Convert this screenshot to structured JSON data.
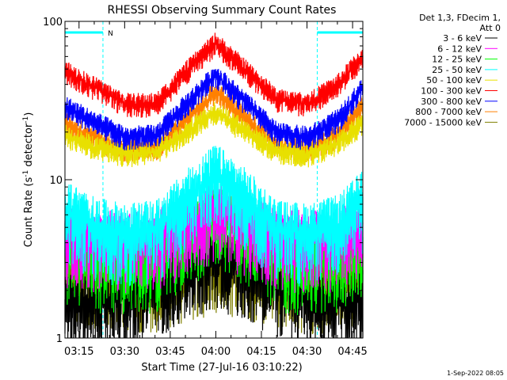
{
  "chart_data": {
    "type": "line",
    "title": "RHESSI Observing Summary Count Rates",
    "xlabel": "Start Time (27-Jul-16 03:10:22)",
    "ylabel_main": "Count Rate (s",
    "ylabel_sup1": "-1",
    "ylabel_mid": " detector",
    "ylabel_sup2": "-1",
    "ylabel_end": ")",
    "y_scale": "log",
    "ylim": [
      1,
      100
    ],
    "xlim_minutes": [
      0,
      98
    ],
    "y_ticks": [
      {
        "value": 1,
        "label": "1"
      },
      {
        "value": 10,
        "label": "10"
      },
      {
        "value": 100,
        "label": "100"
      }
    ],
    "x_ticks": [
      {
        "minute": 4.633,
        "label": "03:15"
      },
      {
        "minute": 19.633,
        "label": "03:30"
      },
      {
        "minute": 34.633,
        "label": "03:45"
      },
      {
        "minute": 49.633,
        "label": "04:00"
      },
      {
        "minute": 64.633,
        "label": "04:15"
      },
      {
        "minute": 79.633,
        "label": "04:30"
      },
      {
        "minute": 94.633,
        "label": "04:45"
      }
    ],
    "night_intervals": [
      [
        0,
        12.5
      ],
      [
        83,
        98
      ]
    ],
    "saa_marker": {
      "minute": 15,
      "label": "N"
    },
    "legend_header": [
      "Det 1,3, FDecim 1,",
      "Att 0"
    ],
    "legend_placement": "right",
    "series": [
      {
        "name": "3 - 6 keV",
        "color": "#000000",
        "x": [
          0,
          10,
          20,
          30,
          40,
          49.6,
          60,
          70,
          80,
          90,
          98
        ],
        "values": [
          1.6,
          1.7,
          1.9,
          2.2,
          2.8,
          3.3,
          2.8,
          2.2,
          1.8,
          1.6,
          1.8
        ]
      },
      {
        "name": "6 - 12 keV",
        "color": "#ff00ff",
        "x": [
          0,
          10,
          20,
          30,
          40,
          49.6,
          60,
          70,
          80,
          90,
          98
        ],
        "values": [
          4.6,
          4.3,
          4.1,
          4.3,
          5.4,
          6.3,
          5.2,
          4.3,
          4.1,
          4.3,
          4.8
        ]
      },
      {
        "name": "12 - 25 keV",
        "color": "#00ff00",
        "x": [
          0,
          10,
          20,
          30,
          40,
          49.6,
          60,
          70,
          80,
          90,
          98
        ],
        "values": [
          3.5,
          3.2,
          3.0,
          3.2,
          4.5,
          6.0,
          4.5,
          3.2,
          3.0,
          3.2,
          3.8
        ]
      },
      {
        "name": "25 - 50 keV",
        "color": "#00ffff",
        "x": [
          0,
          10,
          20,
          30,
          40,
          49.6,
          60,
          70,
          80,
          90,
          98
        ],
        "values": [
          6.5,
          5.0,
          4.6,
          4.8,
          7.5,
          11.0,
          7.5,
          4.8,
          4.6,
          5.2,
          7.5
        ]
      },
      {
        "name": "50 - 100 keV",
        "color": "#e8e000",
        "x": [
          0,
          10,
          20,
          30,
          40,
          49.6,
          60,
          70,
          80,
          90,
          98
        ],
        "values": [
          19,
          16,
          14.5,
          15,
          20,
          27,
          20,
          15,
          14.5,
          17,
          23
        ]
      },
      {
        "name": "100 - 300 keV",
        "color": "#ff0000",
        "x": [
          0,
          10,
          20,
          30,
          40,
          49.6,
          60,
          70,
          80,
          90,
          98
        ],
        "values": [
          48,
          38,
          30,
          30,
          48,
          73,
          48,
          32,
          30,
          40,
          60
        ]
      },
      {
        "name": "300 - 800 keV",
        "color": "#0000ff",
        "x": [
          0,
          10,
          20,
          30,
          40,
          49.6,
          60,
          70,
          80,
          90,
          98
        ],
        "values": [
          29,
          23,
          18.5,
          19,
          30,
          46,
          30,
          19.5,
          18.5,
          24,
          38
        ]
      },
      {
        "name": "800 - 7000 keV",
        "color": "#ff8000",
        "x": [
          0,
          10,
          20,
          30,
          40,
          49.6,
          60,
          70,
          80,
          90,
          98
        ],
        "values": [
          23,
          18,
          15.5,
          16,
          24,
          36,
          24,
          16,
          15.5,
          19,
          30
        ]
      },
      {
        "name": "7000 - 15000 keV",
        "color": "#808000",
        "x": [
          0,
          10,
          20,
          30,
          40,
          49.6,
          60,
          70,
          80,
          90,
          98
        ],
        "values": [
          2.5,
          2.4,
          2.3,
          2.4,
          2.8,
          3.0,
          2.8,
          2.4,
          2.3,
          2.4,
          2.6
        ]
      }
    ]
  },
  "footer": {
    "timestamp": "1-Sep-2022 08:05"
  }
}
